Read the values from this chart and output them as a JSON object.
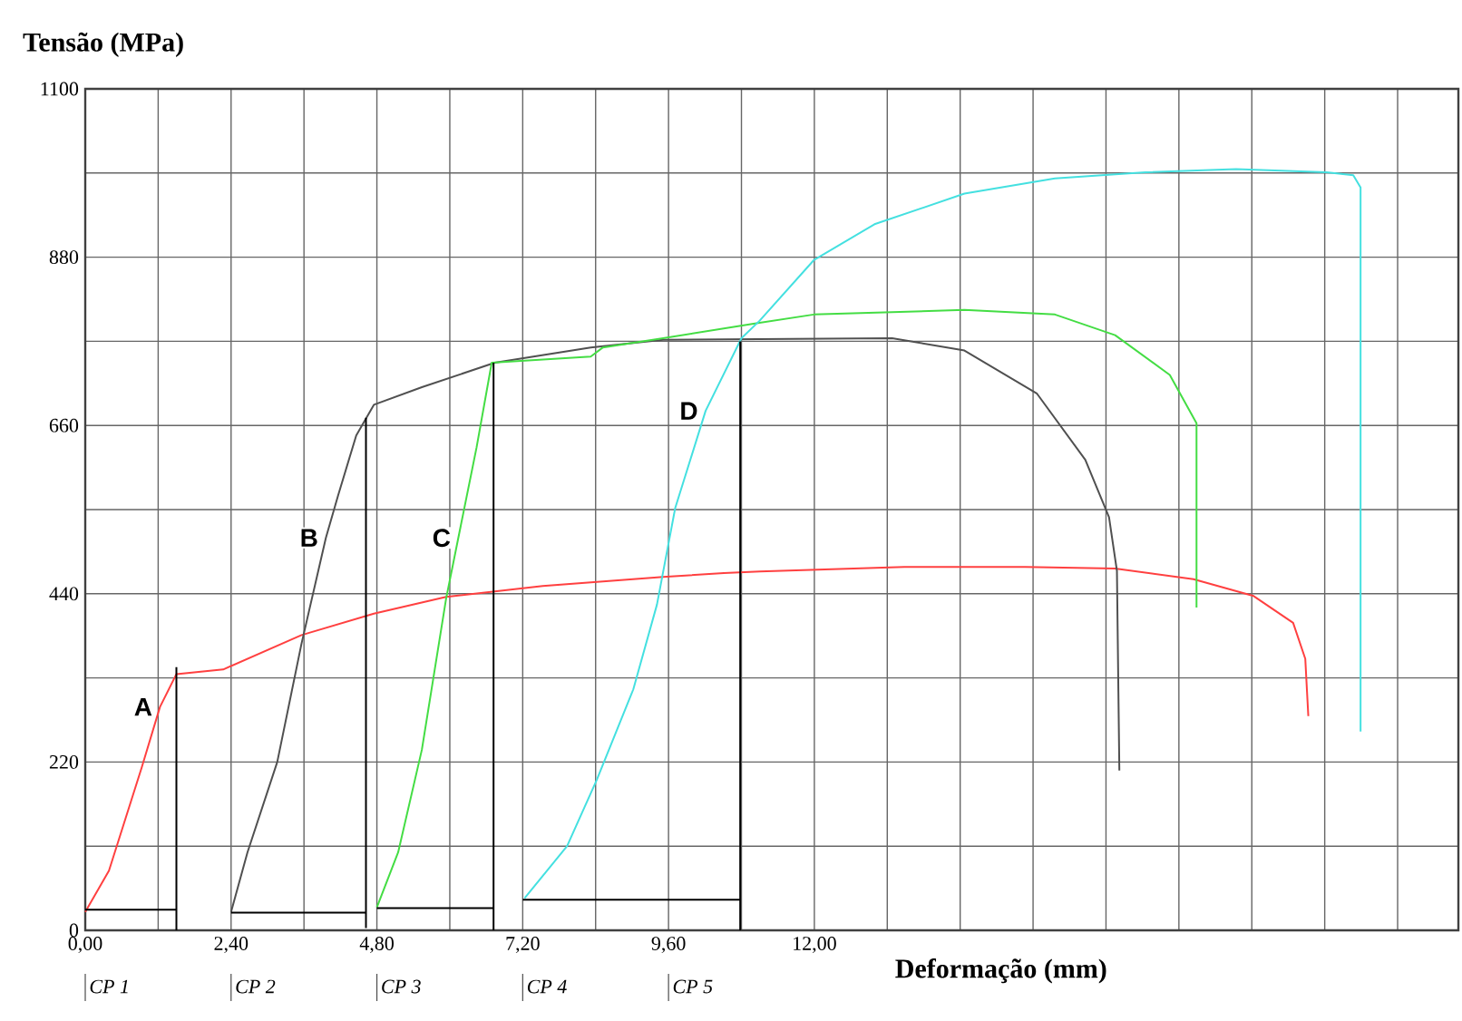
{
  "chart_data": {
    "type": "line",
    "xlabel": "Deformação (mm)",
    "ylabel": "Tensão (MPa)",
    "xlim": [
      0,
      22.6
    ],
    "ylim": [
      0,
      1100
    ],
    "xticks": [
      {
        "value": 0,
        "label": "0,00"
      },
      {
        "value": 1.2,
        "label": null
      },
      {
        "value": 2.4,
        "label": "2,40"
      },
      {
        "value": 3.6,
        "label": null
      },
      {
        "value": 4.8,
        "label": "4,80"
      },
      {
        "value": 6,
        "label": null
      },
      {
        "value": 7.2,
        "label": "7,20"
      },
      {
        "value": 8.4,
        "label": null
      },
      {
        "value": 9.6,
        "label": "9,60"
      },
      {
        "value": 10.8,
        "label": null
      },
      {
        "value": 12,
        "label": "12,00"
      },
      {
        "value": 13.2,
        "label": null
      },
      {
        "value": 14.4,
        "label": null
      },
      {
        "value": 15.6,
        "label": null
      },
      {
        "value": 16.8,
        "label": null
      },
      {
        "value": 18,
        "label": null
      },
      {
        "value": 19.2,
        "label": null
      },
      {
        "value": 20.4,
        "label": null
      },
      {
        "value": 21.6,
        "label": null
      }
    ],
    "yticks": [
      0,
      {
        "value": 110,
        "label": null
      },
      220,
      {
        "value": 330,
        "label": null
      },
      440,
      {
        "value": 550,
        "label": null
      },
      660,
      {
        "value": 770,
        "label": null
      },
      880,
      {
        "value": 990,
        "label": null
      },
      1100
    ],
    "grid": true,
    "marker": "none",
    "line_style": "solid",
    "series": [
      {
        "name": "A",
        "color": "#ff4040",
        "x": [
          0,
          0.39,
          0.93,
          1.23,
          1.5,
          2.27,
          3.56,
          4.75,
          5.94,
          7.53,
          9.51,
          10.51,
          11.1,
          13.48,
          15.47,
          16.95,
          18.24,
          19.23,
          19.88,
          20.08,
          20.13
        ],
        "values": [
          24,
          78,
          213,
          292,
          335,
          341,
          386,
          414,
          436,
          450,
          462,
          467,
          469,
          475,
          475,
          473,
          459,
          437,
          402,
          355,
          280
        ]
      },
      {
        "name": "B",
        "color": "#505050",
        "x": [
          2.4,
          2.67,
          3.16,
          3.56,
          3.96,
          4.16,
          4.46,
          4.75,
          5.54,
          6.74,
          8.32,
          9.51,
          13.28,
          14.47,
          15.66,
          16.46,
          16.85,
          16.98,
          17.02
        ],
        "values": [
          24,
          102,
          220,
          375,
          513,
          568,
          647,
          687,
          710,
          742,
          762,
          772,
          774,
          758,
          702,
          615,
          540,
          470,
          209
        ]
      },
      {
        "name": "C",
        "color": "#44dd44",
        "x": [
          4.8,
          5.15,
          5.54,
          5.94,
          6.14,
          6.44,
          6.69,
          8.32,
          8.52,
          9.51,
          11.0,
          11.99,
          14.47,
          15.96,
          16.95,
          17.85,
          18.29,
          18.29
        ],
        "values": [
          30,
          102,
          236,
          434,
          513,
          631,
          742,
          750,
          762,
          774,
          793,
          805,
          811,
          805,
          778,
          726,
          663,
          422
        ]
      },
      {
        "name": "D",
        "color": "#44e0e0",
        "x": [
          7.23,
          7.93,
          8.42,
          9.02,
          9.41,
          9.71,
          10.21,
          10.8,
          11.1,
          11.99,
          12.99,
          14.47,
          15.96,
          17.45,
          18.94,
          20.43,
          20.87,
          20.99,
          20.99
        ],
        "values": [
          42,
          110,
          197,
          315,
          426,
          552,
          679,
          774,
          797,
          876,
          923,
          963,
          983,
          991,
          995,
          991,
          987,
          971,
          260
        ]
      },
      {
        "color": "#000000",
        "x": [
          0,
          1.5
        ],
        "values": [
          27,
          27
        ]
      },
      {
        "color": "#000000",
        "x": [
          1.5,
          1.5
        ],
        "values": [
          0,
          344
        ]
      },
      {
        "color": "#000000",
        "x": [
          2.4,
          4.62
        ],
        "values": [
          23,
          23
        ]
      },
      {
        "color": "#000000",
        "x": [
          4.62,
          4.62
        ],
        "values": [
          3,
          670
        ]
      },
      {
        "color": "#000000",
        "x": [
          4.8,
          6.72
        ],
        "values": [
          29,
          29
        ]
      },
      {
        "color": "#000000",
        "x": [
          6.72,
          6.72
        ],
        "values": [
          0,
          742
        ]
      },
      {
        "color": "#000000",
        "x": [
          7.2,
          10.78
        ],
        "values": [
          40,
          40
        ]
      },
      {
        "color": "#000000",
        "x": [
          10.78,
          10.78
        ],
        "values": [
          0,
          770
        ]
      }
    ],
    "annotations": [
      "CP 1",
      "CP 2",
      "CP 3",
      "CP 4",
      "CP 5"
    ]
  }
}
